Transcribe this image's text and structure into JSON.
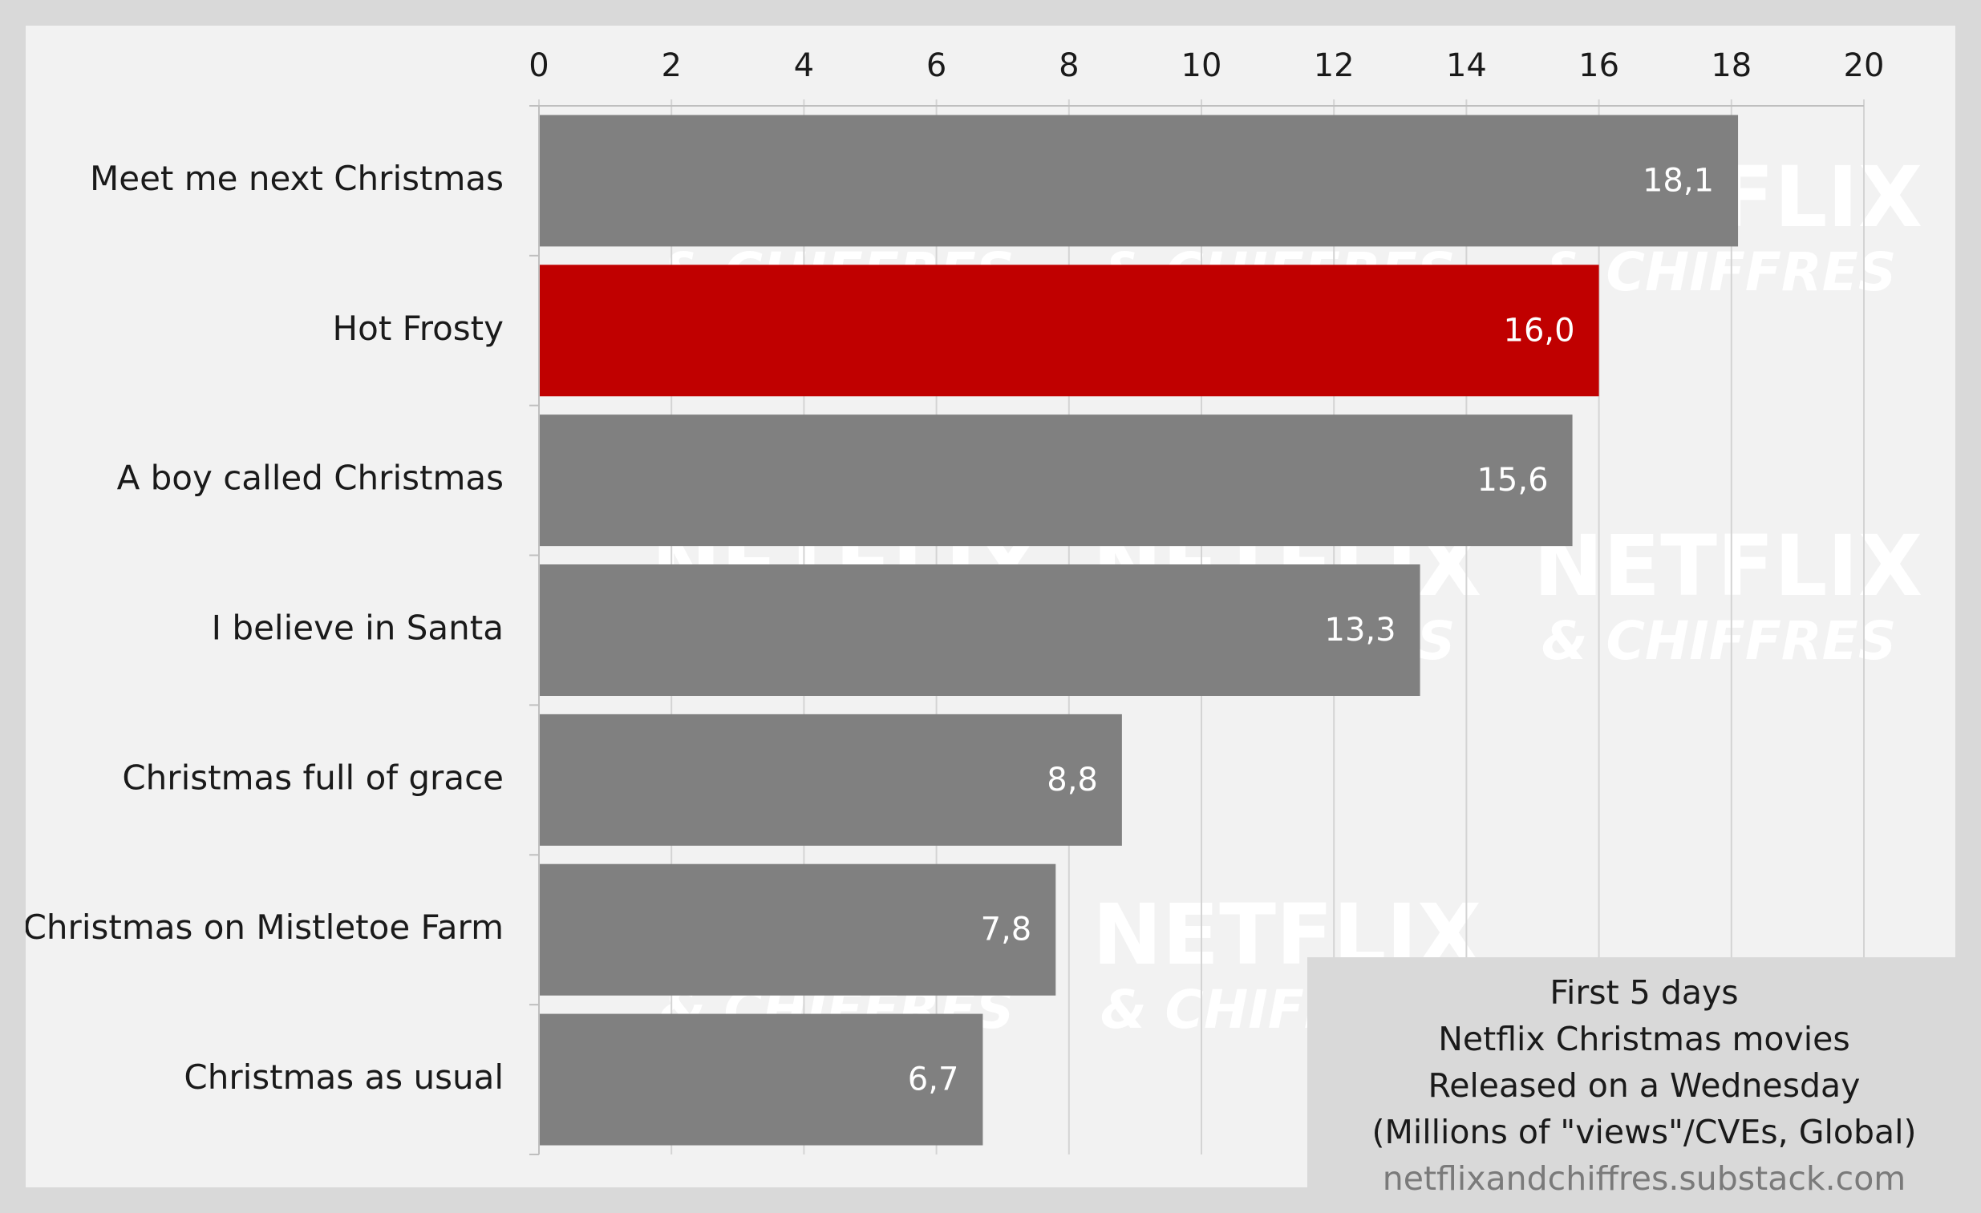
{
  "info_box": {
    "line1": "First 5 days",
    "line2": "Netflix Christmas movies",
    "line3": "Released on a Wednesday",
    "line4": "(Millions of \"views\"/CVEs, Global)",
    "source": "netflixandchiffres.substack.com"
  },
  "watermark": {
    "title": "NETFLIX",
    "subtitle": "& CHIFFRES"
  },
  "colors": {
    "bar_default": "#808080",
    "bar_highlight": "#c00000",
    "background": "#f2f2f2",
    "border": "#d9d9d9"
  },
  "chart_data": {
    "type": "bar",
    "orientation": "horizontal",
    "title": "",
    "xlabel": "",
    "ylabel": "",
    "xlim": [
      0,
      20
    ],
    "x_ticks": [
      0,
      2,
      4,
      6,
      8,
      10,
      12,
      14,
      16,
      18,
      20
    ],
    "x_axis_position": "top",
    "grid": true,
    "categories": [
      "Meet me next Christmas",
      "Hot Frosty",
      "A boy called Christmas",
      "I believe in Santa",
      "Christmas full of grace",
      "Christmas on Mistletoe Farm",
      "Christmas as usual"
    ],
    "values": [
      18.1,
      16.0,
      15.6,
      13.3,
      8.8,
      7.8,
      6.7
    ],
    "value_labels": [
      "18,1",
      "16,0",
      "15,6",
      "13,3",
      "8,8",
      "7,8",
      "6,7"
    ],
    "highlight": "Hot Frosty"
  }
}
